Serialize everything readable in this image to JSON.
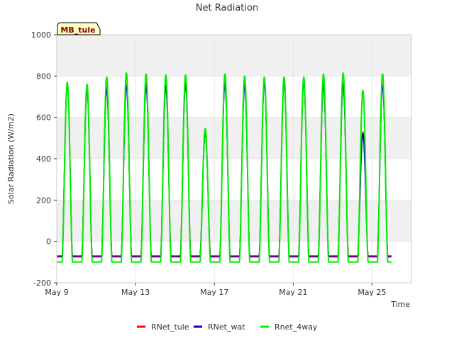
{
  "chart_data": {
    "type": "line",
    "title": "Net Radiation",
    "site_label": "MB_tule",
    "xlabel": "Time",
    "ylabel": "Solar Radiation (W/m2)",
    "ylim": [
      -200,
      1000
    ],
    "yticks": [
      -200,
      0,
      200,
      400,
      600,
      800,
      1000
    ],
    "xlim_days": [
      0,
      18
    ],
    "xticks": [
      {
        "day": 0,
        "label": "May 9"
      },
      {
        "day": 4,
        "label": "May 13"
      },
      {
        "day": 8,
        "label": "May 17"
      },
      {
        "day": 12,
        "label": "May 21"
      },
      {
        "day": 16,
        "label": "May 25"
      }
    ],
    "grid": true,
    "legend_position": "bottom",
    "daily_peaks": [
      {
        "day": 9,
        "RNet_tule": 765,
        "RNet_wat": 760,
        "Rnet_4way": 770
      },
      {
        "day": 10,
        "RNet_tule": 740,
        "RNet_wat": 730,
        "Rnet_4way": 760
      },
      {
        "day": 11,
        "RNet_tule": 745,
        "RNet_wat": 735,
        "Rnet_4way": 795
      },
      {
        "day": 12,
        "RNet_tule": 760,
        "RNet_wat": 750,
        "Rnet_4way": 815
      },
      {
        "day": 13,
        "RNet_tule": 765,
        "RNet_wat": 750,
        "Rnet_4way": 810
      },
      {
        "day": 14,
        "RNet_tule": 760,
        "RNet_wat": 750,
        "Rnet_4way": 805
      },
      {
        "day": 15,
        "RNet_tule": 770,
        "RNet_wat": 760,
        "Rnet_4way": 805
      },
      {
        "day": 16,
        "RNet_tule": 525,
        "RNet_wat": 520,
        "Rnet_4way": 545
      },
      {
        "day": 17,
        "RNet_tule": 770,
        "RNet_wat": 760,
        "Rnet_4way": 810
      },
      {
        "day": 18,
        "RNet_tule": 760,
        "RNet_wat": 750,
        "Rnet_4way": 800
      },
      {
        "day": 19,
        "RNet_tule": 775,
        "RNet_wat": 765,
        "Rnet_4way": 795
      },
      {
        "day": 20,
        "RNet_tule": 775,
        "RNet_wat": 765,
        "Rnet_4way": 795
      },
      {
        "day": 21,
        "RNet_tule": 780,
        "RNet_wat": 770,
        "Rnet_4way": 795
      },
      {
        "day": 22,
        "RNet_tule": 765,
        "RNet_wat": 755,
        "Rnet_4way": 810
      },
      {
        "day": 23,
        "RNet_tule": 765,
        "RNet_wat": 755,
        "Rnet_4way": 815
      },
      {
        "day": 24,
        "RNet_tule": 530,
        "RNet_wat": 520,
        "Rnet_4way": 730
      },
      {
        "day": 25,
        "RNet_tule": 760,
        "RNet_wat": 750,
        "Rnet_4way": 810
      }
    ],
    "night_values": {
      "RNet_tule": -70,
      "RNet_wat": -75,
      "Rnet_4way": -100
    },
    "series": [
      {
        "name": "RNet_tule",
        "color": "#ff0000"
      },
      {
        "name": "RNet_wat",
        "color": "#0000cc"
      },
      {
        "name": "Rnet_4way",
        "color": "#00ee00"
      }
    ]
  }
}
